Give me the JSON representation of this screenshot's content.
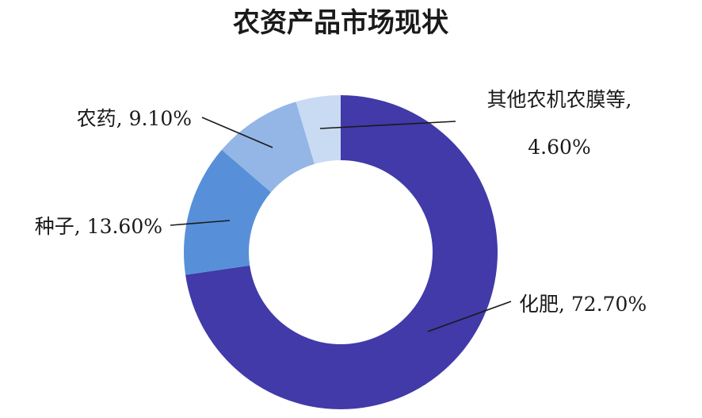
{
  "chart_data": {
    "type": "pie",
    "title": "农资产品市场现状",
    "style": "donut",
    "start": "12 o'clock, clockwise",
    "slices": [
      {
        "category": "化肥",
        "value": 72.7,
        "display": "72.70%",
        "color": "#413aa8"
      },
      {
        "category": "种子",
        "value": 13.6,
        "display": "13.60%",
        "color": "#5790d8"
      },
      {
        "category": "农药",
        "value": 9.1,
        "display": "9.10%",
        "color": "#93b6e6"
      },
      {
        "category": "其他农机农膜等",
        "value": 4.6,
        "display": "4.60%",
        "color": "#c9dbf2"
      }
    ]
  }
}
